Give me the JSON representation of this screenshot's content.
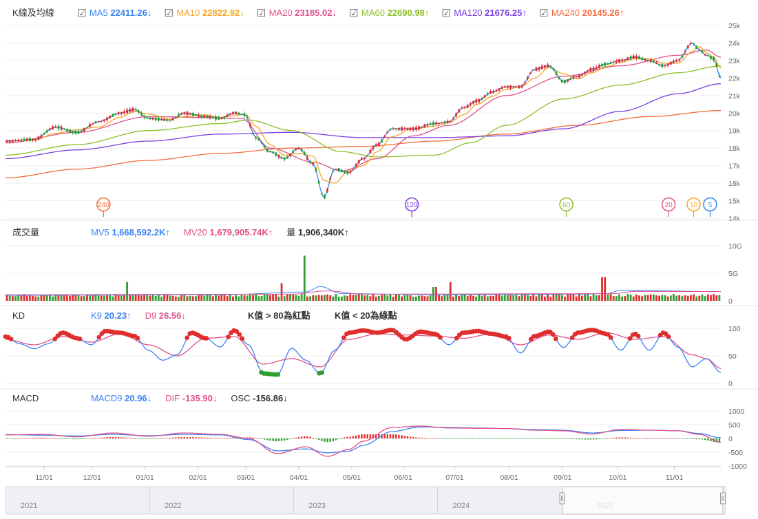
{
  "colors": {
    "ma5": "#3b82f6",
    "ma10": "#f5a623",
    "ma20": "#e0508a",
    "ma60": "#8cbf26",
    "ma120": "#7b3fe4",
    "ma240": "#f36c3d",
    "up": "#e02d2d",
    "down": "#2e9e2e",
    "k": "#3b82f6",
    "d": "#e0508a",
    "dif": "#e0508a",
    "macd": "#3b82f6"
  },
  "price_panel": {
    "label": "K線及均線",
    "legend": [
      {
        "key": "ma5",
        "name": "MA5",
        "value": "22411.26",
        "arrow": "↓"
      },
      {
        "key": "ma10",
        "name": "MA10",
        "value": "22822.92",
        "arrow": "↓"
      },
      {
        "key": "ma20",
        "name": "MA20",
        "value": "23185.02",
        "arrow": "↓"
      },
      {
        "key": "ma60",
        "name": "MA60",
        "value": "22690.98",
        "arrow": "↑"
      },
      {
        "key": "ma120",
        "name": "MA120",
        "value": "21676.25",
        "arrow": "↑"
      },
      {
        "key": "ma240",
        "name": "MA240",
        "value": "20145.26",
        "arrow": "↑"
      }
    ],
    "checkbox_glyph": "☑",
    "markers": [
      {
        "label": "240",
        "key": "ma240",
        "t": 0.137
      },
      {
        "label": "120",
        "key": "ma120",
        "t": 0.568
      },
      {
        "label": "60",
        "key": "ma60",
        "t": 0.784
      },
      {
        "label": "20",
        "key": "ma20",
        "t": 0.927
      },
      {
        "label": "10",
        "key": "ma10",
        "t": 0.962
      },
      {
        "label": "5",
        "key": "ma5",
        "t": 0.985
      }
    ]
  },
  "volume_panel": {
    "label": "成交量",
    "legend": [
      {
        "key": "ma5",
        "name": "MV5",
        "value": "1,668,592.2K",
        "arrow": "↑"
      },
      {
        "key": "ma20",
        "name": "MV20",
        "value": "1,679,905.74K",
        "arrow": "↑"
      },
      {
        "key": "plain",
        "name": "量",
        "value": "1,906,340K",
        "arrow": "↑"
      }
    ]
  },
  "kd_panel": {
    "label": "KD",
    "legend": [
      {
        "key": "k",
        "name": "K9",
        "value": "20.23",
        "arrow": "↑"
      },
      {
        "key": "d",
        "name": "D9",
        "value": "26.56",
        "arrow": "↓"
      }
    ],
    "notes": [
      "K值 > 80為紅點",
      "K值 < 20為綠點"
    ]
  },
  "macd_panel": {
    "label": "MACD",
    "legend": [
      {
        "key": "macd",
        "name": "MACD9",
        "value": "20.96",
        "arrow": "↓"
      },
      {
        "key": "dif",
        "name": "DIF",
        "value": "-135.90",
        "arrow": "↓"
      },
      {
        "key": "plain",
        "name": "OSC",
        "value": "-156.86",
        "arrow": "↓"
      }
    ]
  },
  "x_axis": {
    "labels": [
      {
        "text": "11/01",
        "t": 0.054
      },
      {
        "text": "12/01",
        "t": 0.121
      },
      {
        "text": "01/01",
        "t": 0.195
      },
      {
        "text": "02/01",
        "t": 0.269
      },
      {
        "text": "03/01",
        "t": 0.336
      },
      {
        "text": "04/01",
        "t": 0.41
      },
      {
        "text": "05/01",
        "t": 0.484
      },
      {
        "text": "06/01",
        "t": 0.556
      },
      {
        "text": "07/01",
        "t": 0.628
      },
      {
        "text": "08/01",
        "t": 0.704
      },
      {
        "text": "09/01",
        "t": 0.779
      },
      {
        "text": "10/01",
        "t": 0.856
      },
      {
        "text": "11/01",
        "t": 0.935
      }
    ]
  },
  "navigator": {
    "years": [
      {
        "text": "2021",
        "t": 0.0
      },
      {
        "text": "2022",
        "t": 0.2
      },
      {
        "text": "2023",
        "t": 0.4
      },
      {
        "text": "2024",
        "t": 0.6
      },
      {
        "text": "2025",
        "t": 0.8
      }
    ],
    "window": [
      0.773,
      1.0
    ]
  },
  "chart_data": [
    {
      "type": "candlestick",
      "title": "K線及均線",
      "y_axis": {
        "min": 14000,
        "max": 25000,
        "ticks": [
          "25k",
          "24k",
          "23k",
          "22k",
          "21k",
          "20k",
          "19k",
          "18k",
          "17k",
          "16k",
          "15k",
          "14k"
        ]
      },
      "close_anchors": [
        [
          0,
          18400
        ],
        [
          0.04,
          18500
        ],
        [
          0.07,
          19200
        ],
        [
          0.1,
          18900
        ],
        [
          0.13,
          19500
        ],
        [
          0.16,
          20000
        ],
        [
          0.18,
          20200
        ],
        [
          0.2,
          19700
        ],
        [
          0.23,
          19600
        ],
        [
          0.25,
          20000
        ],
        [
          0.28,
          19800
        ],
        [
          0.3,
          19700
        ],
        [
          0.32,
          20000
        ],
        [
          0.335,
          19900
        ],
        [
          0.35,
          18600
        ],
        [
          0.37,
          17800
        ],
        [
          0.39,
          17400
        ],
        [
          0.41,
          18000
        ],
        [
          0.43,
          17100
        ],
        [
          0.445,
          15200
        ],
        [
          0.46,
          16800
        ],
        [
          0.48,
          16600
        ],
        [
          0.5,
          17400
        ],
        [
          0.52,
          18200
        ],
        [
          0.54,
          19100
        ],
        [
          0.57,
          19100
        ],
        [
          0.6,
          19400
        ],
        [
          0.62,
          19500
        ],
        [
          0.64,
          20300
        ],
        [
          0.66,
          20700
        ],
        [
          0.68,
          21200
        ],
        [
          0.7,
          21500
        ],
        [
          0.72,
          21500
        ],
        [
          0.74,
          22500
        ],
        [
          0.76,
          22700
        ],
        [
          0.78,
          21800
        ],
        [
          0.8,
          22100
        ],
        [
          0.82,
          22500
        ],
        [
          0.84,
          22800
        ],
        [
          0.86,
          23000
        ],
        [
          0.88,
          23200
        ],
        [
          0.9,
          23000
        ],
        [
          0.92,
          22700
        ],
        [
          0.94,
          23000
        ],
        [
          0.96,
          24000
        ],
        [
          0.97,
          23600
        ],
        [
          0.98,
          23300
        ],
        [
          0.99,
          23100
        ],
        [
          1,
          22000
        ]
      ],
      "moving_averages": {
        "ma20": [
          [
            0,
            18300
          ],
          [
            0.1,
            18900
          ],
          [
            0.2,
            19800
          ],
          [
            0.33,
            19700
          ],
          [
            0.37,
            18000
          ],
          [
            0.43,
            17200
          ],
          [
            0.47,
            16700
          ],
          [
            0.52,
            17400
          ],
          [
            0.57,
            18700
          ],
          [
            0.62,
            19300
          ],
          [
            0.7,
            21000
          ],
          [
            0.78,
            22100
          ],
          [
            0.86,
            22700
          ],
          [
            0.94,
            23300
          ],
          [
            0.98,
            23600
          ],
          [
            1,
            23185
          ]
        ],
        "ma60": [
          [
            0,
            17600
          ],
          [
            0.1,
            18200
          ],
          [
            0.2,
            19000
          ],
          [
            0.3,
            19400
          ],
          [
            0.34,
            19600
          ],
          [
            0.4,
            19000
          ],
          [
            0.47,
            17800
          ],
          [
            0.52,
            17500
          ],
          [
            0.6,
            17600
          ],
          [
            0.65,
            18300
          ],
          [
            0.7,
            19300
          ],
          [
            0.78,
            20800
          ],
          [
            0.86,
            21600
          ],
          [
            0.94,
            22300
          ],
          [
            1,
            22690
          ]
        ],
        "ma120": [
          [
            0,
            17400
          ],
          [
            0.1,
            17900
          ],
          [
            0.2,
            18400
          ],
          [
            0.3,
            18800
          ],
          [
            0.4,
            18900
          ],
          [
            0.5,
            18600
          ],
          [
            0.6,
            18600
          ],
          [
            0.7,
            18700
          ],
          [
            0.78,
            19100
          ],
          [
            0.86,
            20100
          ],
          [
            0.94,
            21100
          ],
          [
            1,
            21676
          ]
        ],
        "ma240": [
          [
            0,
            16300
          ],
          [
            0.1,
            16800
          ],
          [
            0.2,
            17300
          ],
          [
            0.3,
            17700
          ],
          [
            0.4,
            18000
          ],
          [
            0.5,
            18100
          ],
          [
            0.6,
            18400
          ],
          [
            0.7,
            18800
          ],
          [
            0.8,
            19300
          ],
          [
            0.9,
            19800
          ],
          [
            1,
            20145
          ]
        ]
      }
    },
    {
      "type": "bar",
      "title": "成交量",
      "y_axis": {
        "min": 0,
        "max": 10,
        "unit": "G",
        "ticks": [
          "10G",
          "5G",
          "0"
        ]
      },
      "baseline_G": 1.0,
      "spikes": [
        {
          "t": 0.17,
          "v": 3.4
        },
        {
          "t": 0.385,
          "v": 3.2
        },
        {
          "t": 0.418,
          "v": 8.2
        },
        {
          "t": 0.6,
          "v": 2.5
        },
        {
          "t": 0.622,
          "v": 3.4
        },
        {
          "t": 0.836,
          "v": 4.3
        }
      ]
    },
    {
      "type": "line",
      "title": "KD",
      "y_axis": {
        "min": 0,
        "max": 100,
        "ticks": [
          "100",
          "50",
          "0"
        ]
      },
      "k_anchors": [
        [
          0,
          85
        ],
        [
          0.02,
          72
        ],
        [
          0.04,
          63
        ],
        [
          0.06,
          72
        ],
        [
          0.08,
          92
        ],
        [
          0.1,
          82
        ],
        [
          0.12,
          70
        ],
        [
          0.14,
          95
        ],
        [
          0.16,
          92
        ],
        [
          0.18,
          86
        ],
        [
          0.2,
          60
        ],
        [
          0.22,
          42
        ],
        [
          0.24,
          52
        ],
        [
          0.26,
          92
        ],
        [
          0.28,
          82
        ],
        [
          0.3,
          66
        ],
        [
          0.32,
          96
        ],
        [
          0.34,
          70
        ],
        [
          0.36,
          18
        ],
        [
          0.38,
          16
        ],
        [
          0.4,
          64
        ],
        [
          0.42,
          42
        ],
        [
          0.44,
          18
        ],
        [
          0.46,
          60
        ],
        [
          0.48,
          92
        ],
        [
          0.5,
          96
        ],
        [
          0.52,
          92
        ],
        [
          0.54,
          97
        ],
        [
          0.56,
          80
        ],
        [
          0.58,
          94
        ],
        [
          0.6,
          90
        ],
        [
          0.62,
          70
        ],
        [
          0.64,
          92
        ],
        [
          0.66,
          95
        ],
        [
          0.68,
          90
        ],
        [
          0.7,
          85
        ],
        [
          0.72,
          55
        ],
        [
          0.74,
          86
        ],
        [
          0.76,
          94
        ],
        [
          0.78,
          65
        ],
        [
          0.8,
          92
        ],
        [
          0.82,
          97
        ],
        [
          0.84,
          90
        ],
        [
          0.86,
          60
        ],
        [
          0.88,
          90
        ],
        [
          0.9,
          60
        ],
        [
          0.92,
          92
        ],
        [
          0.94,
          66
        ],
        [
          0.96,
          30
        ],
        [
          0.98,
          45
        ],
        [
          1,
          20
        ]
      ],
      "d_anchors": [
        [
          0,
          80
        ],
        [
          0.04,
          70
        ],
        [
          0.08,
          85
        ],
        [
          0.12,
          75
        ],
        [
          0.16,
          90
        ],
        [
          0.2,
          70
        ],
        [
          0.24,
          50
        ],
        [
          0.28,
          82
        ],
        [
          0.32,
          85
        ],
        [
          0.36,
          35
        ],
        [
          0.4,
          45
        ],
        [
          0.44,
          30
        ],
        [
          0.48,
          80
        ],
        [
          0.52,
          90
        ],
        [
          0.56,
          88
        ],
        [
          0.6,
          86
        ],
        [
          0.64,
          82
        ],
        [
          0.68,
          90
        ],
        [
          0.72,
          70
        ],
        [
          0.76,
          88
        ],
        [
          0.8,
          80
        ],
        [
          0.84,
          92
        ],
        [
          0.88,
          80
        ],
        [
          0.92,
          85
        ],
        [
          0.96,
          52
        ],
        [
          0.98,
          45
        ],
        [
          1,
          27
        ]
      ]
    },
    {
      "type": "line",
      "title": "MACD",
      "y_axis": {
        "min": -1000,
        "max": 1000,
        "ticks": [
          "1000",
          "500",
          "0",
          "-500",
          "-1000"
        ]
      },
      "dif_anchors": [
        [
          0,
          130
        ],
        [
          0.05,
          150
        ],
        [
          0.1,
          60
        ],
        [
          0.15,
          200
        ],
        [
          0.2,
          80
        ],
        [
          0.25,
          200
        ],
        [
          0.3,
          150
        ],
        [
          0.34,
          0
        ],
        [
          0.38,
          -550
        ],
        [
          0.42,
          -300
        ],
        [
          0.45,
          -650
        ],
        [
          0.48,
          -400
        ],
        [
          0.5,
          -100
        ],
        [
          0.54,
          400
        ],
        [
          0.58,
          450
        ],
        [
          0.62,
          380
        ],
        [
          0.66,
          370
        ],
        [
          0.7,
          360
        ],
        [
          0.74,
          300
        ],
        [
          0.78,
          280
        ],
        [
          0.82,
          160
        ],
        [
          0.86,
          330
        ],
        [
          0.9,
          300
        ],
        [
          0.94,
          280
        ],
        [
          0.97,
          150
        ],
        [
          1,
          -136
        ]
      ],
      "macd_anchors": [
        [
          0,
          140
        ],
        [
          0.05,
          120
        ],
        [
          0.1,
          90
        ],
        [
          0.15,
          150
        ],
        [
          0.2,
          100
        ],
        [
          0.25,
          150
        ],
        [
          0.3,
          130
        ],
        [
          0.34,
          -40
        ],
        [
          0.38,
          -450
        ],
        [
          0.42,
          -380
        ],
        [
          0.45,
          -520
        ],
        [
          0.48,
          -460
        ],
        [
          0.5,
          -250
        ],
        [
          0.54,
          250
        ],
        [
          0.58,
          420
        ],
        [
          0.62,
          400
        ],
        [
          0.66,
          380
        ],
        [
          0.7,
          360
        ],
        [
          0.74,
          320
        ],
        [
          0.78,
          300
        ],
        [
          0.82,
          200
        ],
        [
          0.86,
          290
        ],
        [
          0.9,
          300
        ],
        [
          0.94,
          280
        ],
        [
          0.97,
          180
        ],
        [
          1,
          21
        ]
      ]
    }
  ]
}
